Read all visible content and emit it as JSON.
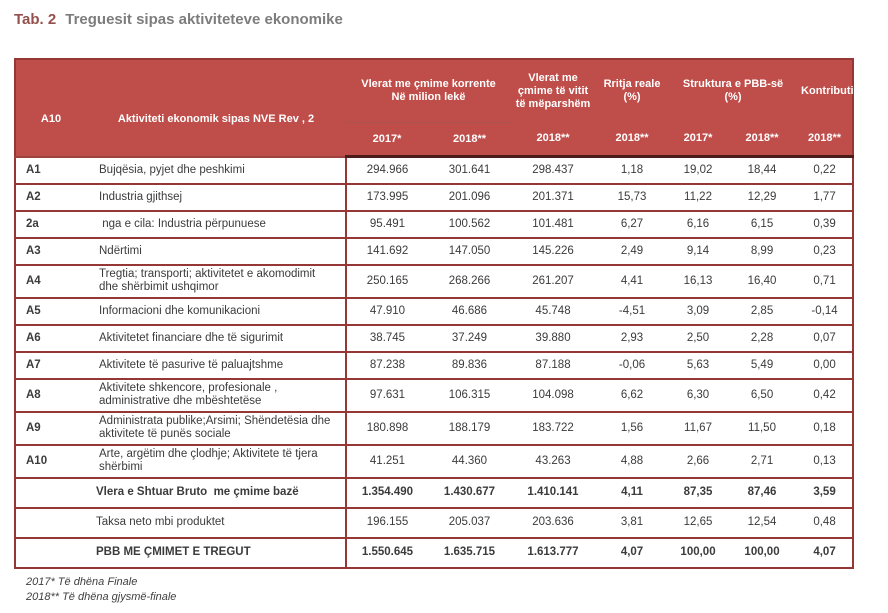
{
  "title": {
    "label": "Tab. 2",
    "text": "Treguesit sipas aktiviteteve ekonomike"
  },
  "table": {
    "header": {
      "code": "A10",
      "activity": "Aktiviteti ekonomik sipas NVE Rev , 2",
      "group_current_prices": "Vlerat me çmime korrente\nNë milion lekë",
      "group_previous_year_prices": "Vlerat me çmime të vitit të mëparshëm",
      "group_real_growth": "Rritja reale (%)",
      "group_gdp_structure": "Struktura e PBB-së (%)",
      "group_contribution": "Kontributi",
      "years": [
        "2017*",
        "2018**",
        "2018**",
        "2018**",
        "2017*",
        "2018**",
        "2018**"
      ]
    },
    "rows": [
      {
        "code": "A1",
        "activity": "Bujqësia, pyjet dhe peshkimi",
        "tall": false,
        "values": [
          "294.966",
          "301.641",
          "298.437",
          "1,18",
          "19,02",
          "18,44",
          "0,22"
        ]
      },
      {
        "code": "A2",
        "activity": "Industria gjithsej",
        "tall": false,
        "values": [
          "173.995",
          "201.096",
          "201.371",
          "15,73",
          "11,22",
          "12,29",
          "1,77"
        ]
      },
      {
        "code": "2a",
        "activity": " nga e cila: Industria përpunuese",
        "tall": false,
        "values": [
          "95.491",
          "100.562",
          "101.481",
          "6,27",
          "6,16",
          "6,15",
          "0,39"
        ]
      },
      {
        "code": "A3",
        "activity": "Ndërtimi",
        "tall": false,
        "values": [
          "141.692",
          "147.050",
          "145.226",
          "2,49",
          "9,14",
          "8,99",
          "0,23"
        ]
      },
      {
        "code": "A4",
        "activity": "Tregtia; transporti; aktivitetet e akomodimit dhe shërbimit ushqimor",
        "tall": true,
        "values": [
          "250.165",
          "268.266",
          "261.207",
          "4,41",
          "16,13",
          "16,40",
          "0,71"
        ]
      },
      {
        "code": "A5",
        "activity": "Informacioni dhe komunikacioni",
        "tall": false,
        "values": [
          "47.910",
          "46.686",
          "45.748",
          "-4,51",
          "3,09",
          "2,85",
          "-0,14"
        ]
      },
      {
        "code": "A6",
        "activity": "Aktivitetet financiare dhe të sigurimit",
        "tall": false,
        "values": [
          "38.745",
          "37.249",
          "39.880",
          "2,93",
          "2,50",
          "2,28",
          "0,07"
        ]
      },
      {
        "code": "A7",
        "activity": "Aktivitete të pasurive të paluajtshme",
        "tall": false,
        "values": [
          "87.238",
          "89.836",
          "87.188",
          "-0,06",
          "5,63",
          "5,49",
          "0,00"
        ]
      },
      {
        "code": "A8",
        "activity": "Aktivitete shkencore, profesionale , administrative dhe mbështetëse",
        "tall": true,
        "values": [
          "97.631",
          "106.315",
          "104.098",
          "6,62",
          "6,30",
          "6,50",
          "0,42"
        ]
      },
      {
        "code": "A9",
        "activity": "Administrata publike;Arsimi; Shëndetësia dhe aktivitete të punës sociale",
        "tall": true,
        "values": [
          "180.898",
          "188.179",
          "183.722",
          "1,56",
          "11,67",
          "11,50",
          "0,18"
        ]
      },
      {
        "code": "A10",
        "activity": "Arte, argëtim dhe çlodhje; Aktivitete të tjera shërbimi",
        "tall": true,
        "values": [
          "41.251",
          "44.360",
          "43.263",
          "4,88",
          "2,66",
          "2,71",
          "0,13"
        ]
      }
    ],
    "summary_rows": [
      {
        "activity": "Vlera e Shtuar Bruto  me çmime bazë",
        "bold": true,
        "values": [
          "1.354.490",
          "1.430.677",
          "1.410.141",
          "4,11",
          "87,35",
          "87,46",
          "3,59"
        ]
      },
      {
        "activity": "Taksa neto mbi produktet",
        "bold": false,
        "values": [
          "196.155",
          "205.037",
          "203.636",
          "3,81",
          "12,65",
          "12,54",
          "0,48"
        ]
      },
      {
        "activity": "PBB ME ÇMIMET E TREGUT",
        "bold": true,
        "values": [
          "1.550.645",
          "1.635.715",
          "1.613.777",
          "4,07",
          "100,00",
          "100,00",
          "4,07"
        ]
      }
    ]
  },
  "footnotes": [
    "2017* Të dhëna Finale",
    "2018** Të dhëna gjysmë-finale"
  ],
  "colors": {
    "header_bg": "#bf4d49",
    "table_border": "#953735",
    "title_label": "#95504c",
    "title_text": "#7d7d7d"
  }
}
